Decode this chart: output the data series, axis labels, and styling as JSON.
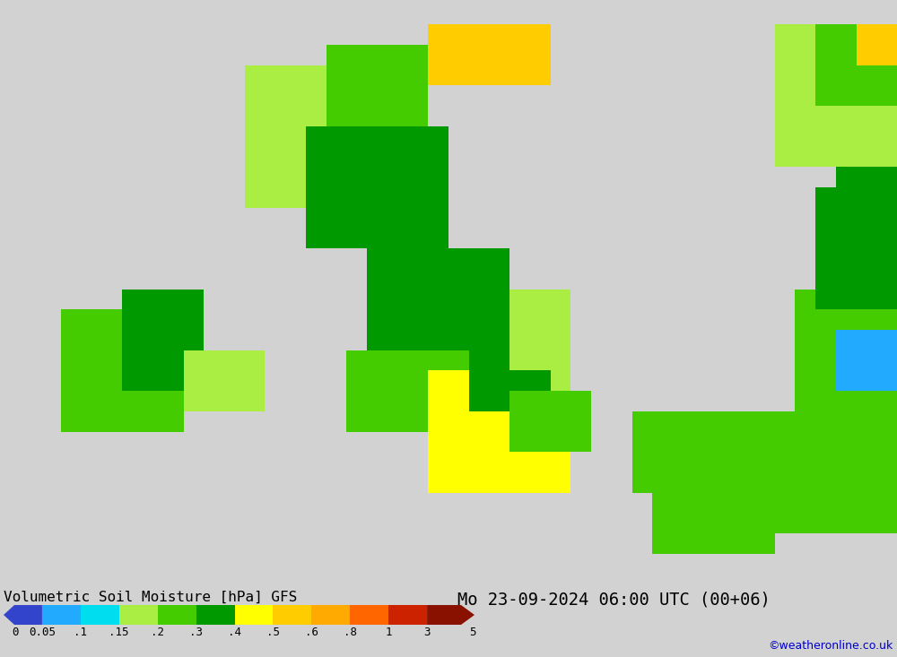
{
  "title_left": "Volumetric Soil Moisture [hPa] GFS",
  "title_right": "Mo 23-09-2024 06:00 UTC (00+06)",
  "copyright": "©weatheronline.co.uk",
  "bg_color": "#d2d2d2",
  "figure_width": 10.0,
  "figure_height": 7.33,
  "dpi": 100,
  "cbar_colors": [
    "#3344cc",
    "#22aaff",
    "#00ddee",
    "#aaee44",
    "#44cc00",
    "#009900",
    "#ffff00",
    "#ffcc00",
    "#ffaa00",
    "#ff6600",
    "#cc2200",
    "#881100"
  ],
  "tick_labels": [
    "0",
    "0.05",
    ".1",
    ".15",
    ".2",
    ".3",
    ".4",
    ".5",
    ".6",
    ".8",
    "1",
    "3",
    "5"
  ],
  "levels": [
    0,
    0.05,
    0.1,
    0.15,
    0.2,
    0.3,
    0.4,
    0.5,
    0.6,
    0.8,
    1.0,
    3.0,
    5.0
  ],
  "map_xlim": [
    -12.0,
    10.0
  ],
  "map_ylim": [
    49.0,
    62.0
  ]
}
